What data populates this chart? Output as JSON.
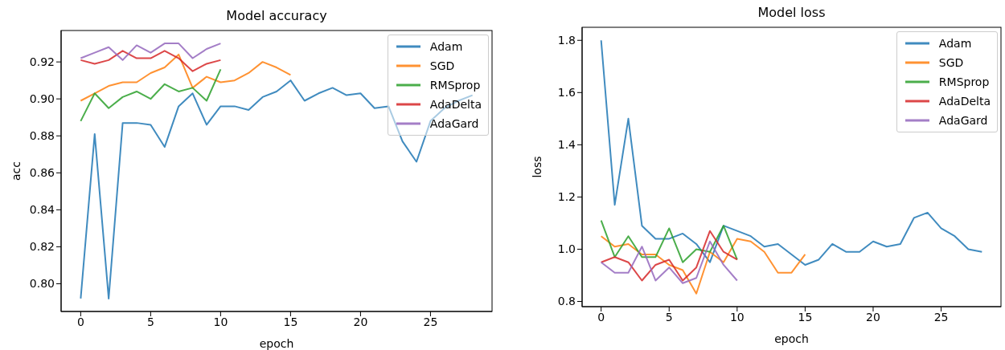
{
  "chart_data": [
    {
      "type": "line",
      "title": "Model accuracy",
      "xlabel": "epoch",
      "ylabel": "acc",
      "xlim": [
        -1.4,
        29.4
      ],
      "xticks": [
        0,
        5,
        10,
        15,
        20,
        25
      ],
      "ylim": [
        0.785,
        0.937
      ],
      "yticks": [
        {
          "value": 0.8,
          "label": "0.80"
        },
        0.82,
        0.84,
        0.86,
        0.88,
        {
          "value": 0.9,
          "label": "0.90"
        },
        0.92
      ],
      "legend": "top right",
      "grid": false,
      "marker": "none",
      "line_style": "solid",
      "series": [
        {
          "name": "Adam",
          "color": "#1f77b4",
          "x": [
            0,
            1,
            2,
            3,
            4,
            5,
            6,
            7,
            8,
            9,
            10,
            11,
            12,
            13,
            14,
            15,
            16,
            17,
            18,
            19,
            20,
            21,
            22,
            23,
            24,
            25,
            26,
            27,
            28
          ],
          "values": [
            0.792,
            0.881,
            0.792,
            0.887,
            0.887,
            0.886,
            0.874,
            0.896,
            0.903,
            0.886,
            0.896,
            0.896,
            0.894,
            0.901,
            0.904,
            0.91,
            0.899,
            0.903,
            0.906,
            0.902,
            0.903,
            0.895,
            0.896,
            0.877,
            0.866,
            0.888,
            0.895,
            0.899,
            0.902
          ]
        },
        {
          "name": "SGD",
          "color": "#ff7f0e",
          "x": [
            0,
            1,
            2,
            3,
            4,
            5,
            6,
            7,
            8,
            9,
            10,
            11,
            12,
            13,
            14,
            15
          ],
          "values": [
            0.899,
            0.903,
            0.907,
            0.909,
            0.909,
            0.914,
            0.917,
            0.924,
            0.906,
            0.912,
            0.909,
            0.91,
            0.914,
            0.92,
            0.917,
            0.913
          ]
        },
        {
          "name": "RMSprop",
          "color": "#2ca02c",
          "x": [
            0,
            1,
            2,
            3,
            4,
            5,
            6,
            7,
            8,
            9,
            10
          ],
          "values": [
            0.888,
            0.903,
            0.895,
            0.901,
            0.904,
            0.9,
            0.908,
            0.904,
            0.906,
            0.899,
            0.916
          ]
        },
        {
          "name": "AdaDelta",
          "color": "#d62728",
          "x": [
            0,
            1,
            2,
            3,
            4,
            5,
            6,
            7,
            8,
            9,
            10
          ],
          "values": [
            0.921,
            0.919,
            0.921,
            0.926,
            0.922,
            0.922,
            0.926,
            0.922,
            0.915,
            0.919,
            0.921
          ]
        },
        {
          "name": "AdaGard",
          "color": "#9467bd",
          "x": [
            0,
            1,
            2,
            3,
            4,
            5,
            6,
            7,
            8,
            9,
            10
          ],
          "values": [
            0.922,
            0.925,
            0.928,
            0.921,
            0.929,
            0.925,
            0.93,
            0.93,
            0.922,
            0.927,
            0.93
          ]
        }
      ]
    },
    {
      "type": "line",
      "title": "Model loss",
      "xlabel": "epoch",
      "ylabel": "loss",
      "xlim": [
        -1.4,
        29.4
      ],
      "xticks": [
        0,
        5,
        10,
        15,
        20,
        25
      ],
      "ylim": [
        0.78,
        1.85
      ],
      "yticks": [
        0.8,
        {
          "value": 1.0,
          "label": "1.0"
        },
        1.2,
        1.4,
        1.6,
        1.8
      ],
      "legend": "top right",
      "grid": false,
      "marker": "none",
      "line_style": "solid",
      "series": [
        {
          "name": "Adam",
          "color": "#1f77b4",
          "x": [
            0,
            1,
            2,
            3,
            4,
            5,
            6,
            7,
            8,
            9,
            10,
            11,
            12,
            13,
            14,
            15,
            16,
            17,
            18,
            19,
            20,
            21,
            22,
            23,
            24,
            25,
            26,
            27,
            28
          ],
          "values": [
            1.8,
            1.17,
            1.5,
            1.09,
            1.04,
            1.04,
            1.06,
            1.02,
            0.95,
            1.09,
            1.07,
            1.05,
            1.01,
            1.02,
            0.98,
            0.94,
            0.96,
            1.02,
            0.99,
            0.99,
            1.03,
            1.01,
            1.02,
            1.12,
            1.14,
            1.08,
            1.05,
            1.0,
            0.99
          ]
        },
        {
          "name": "SGD",
          "color": "#ff7f0e",
          "x": [
            0,
            1,
            2,
            3,
            4,
            5,
            6,
            7,
            8,
            9,
            10,
            11,
            12,
            13,
            14,
            15
          ],
          "values": [
            1.05,
            1.01,
            1.02,
            0.98,
            0.98,
            0.94,
            0.92,
            0.83,
            0.99,
            0.95,
            1.04,
            1.03,
            0.99,
            0.91,
            0.91,
            0.98
          ]
        },
        {
          "name": "RMSprop",
          "color": "#2ca02c",
          "x": [
            0,
            1,
            2,
            3,
            4,
            5,
            6,
            7,
            8,
            9,
            10
          ],
          "values": [
            1.11,
            0.97,
            1.05,
            0.97,
            0.97,
            1.08,
            0.95,
            1.0,
            0.99,
            1.09,
            0.96
          ]
        },
        {
          "name": "AdaDelta",
          "color": "#d62728",
          "x": [
            0,
            1,
            2,
            3,
            4,
            5,
            6,
            7,
            8,
            9,
            10
          ],
          "values": [
            0.95,
            0.97,
            0.95,
            0.88,
            0.94,
            0.96,
            0.88,
            0.93,
            1.07,
            0.99,
            0.96
          ]
        },
        {
          "name": "AdaGard",
          "color": "#9467bd",
          "x": [
            0,
            1,
            2,
            3,
            4,
            5,
            6,
            7,
            8,
            9,
            10
          ],
          "values": [
            0.95,
            0.91,
            0.91,
            1.01,
            0.88,
            0.93,
            0.87,
            0.89,
            1.03,
            0.94,
            0.88
          ]
        }
      ]
    }
  ]
}
